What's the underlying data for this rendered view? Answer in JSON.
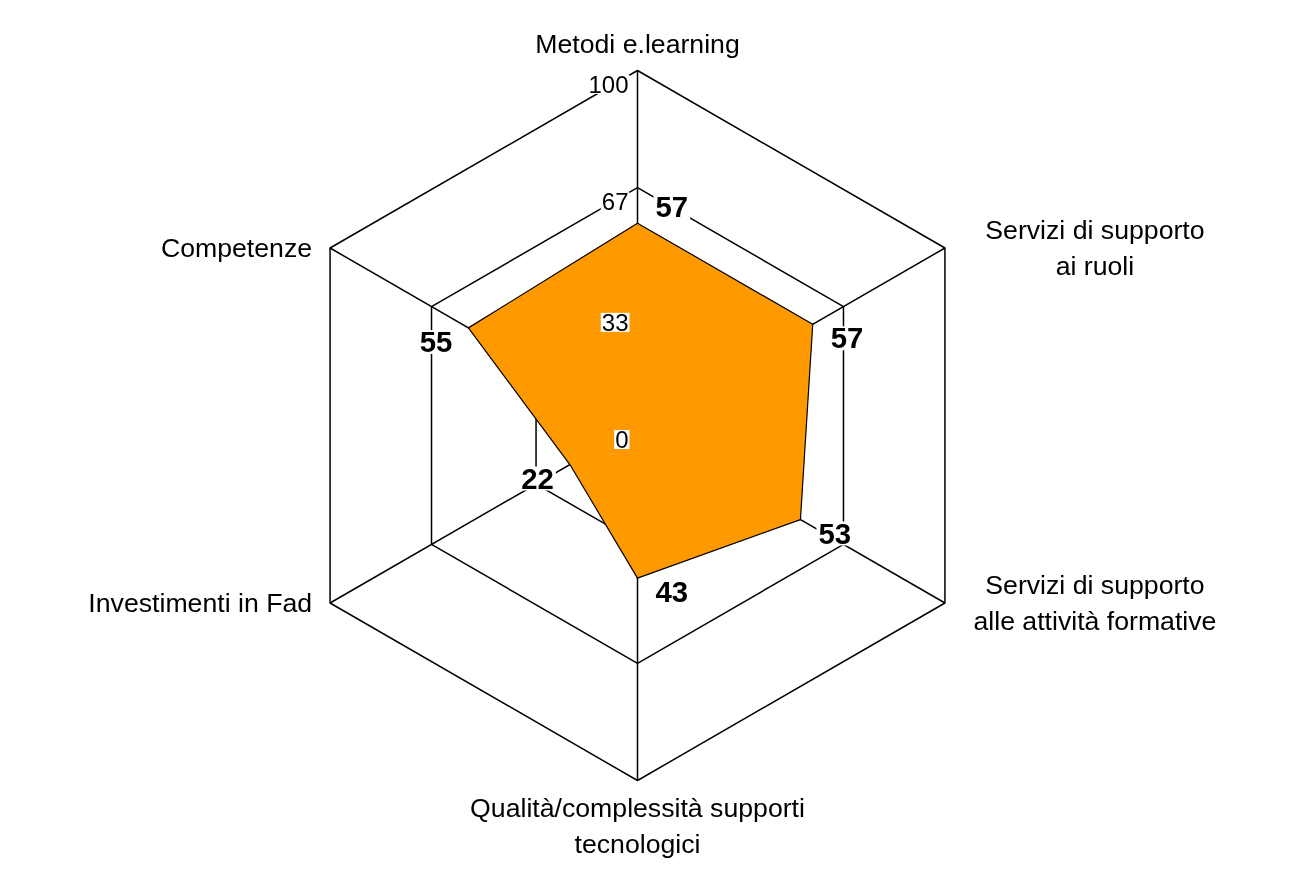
{
  "chart_data": {
    "type": "radar",
    "categories": [
      "Metodi e.learning",
      "Servizi di supporto\nai ruoli",
      "Servizi di supporto\nalle attività formative",
      "Qualità/complessità supporti\ntecnologici",
      "Investimenti in Fad",
      "Competenze"
    ],
    "series": [
      {
        "color": "#ff9900",
        "values": [
          57,
          57,
          53,
          43,
          22,
          55
        ]
      }
    ],
    "ylim": [
      0,
      100
    ],
    "yticks": [
      0,
      33,
      67,
      100
    ],
    "grid": true,
    "data_labels": true
  }
}
